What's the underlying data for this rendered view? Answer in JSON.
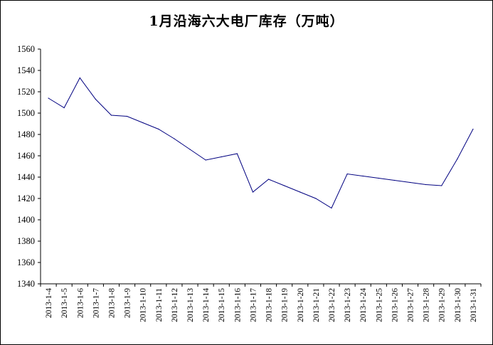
{
  "chart_data": {
    "type": "line",
    "title": "1月沿海六大电厂库存（万吨）",
    "xlabel": "",
    "ylabel": "",
    "ylim": [
      1340,
      1560
    ],
    "yticks": [
      1340,
      1360,
      1380,
      1400,
      1420,
      1440,
      1460,
      1480,
      1500,
      1520,
      1540,
      1560
    ],
    "grid": false,
    "legend": "none",
    "line_color": "#000080",
    "categories": [
      "2013-1-4",
      "2013-1-5",
      "2013-1-6",
      "2013-1-7",
      "2013-1-8",
      "2013-1-9",
      "2013-1-10",
      "2013-1-11",
      "2013-1-12",
      "2013-1-13",
      "2013-1-14",
      "2013-1-15",
      "2013-1-16",
      "2013-1-17",
      "2013-1-18",
      "2013-1-19",
      "2013-1-20",
      "2013-1-21",
      "2013-1-22",
      "2013-1-23",
      "2013-1-24",
      "2013-1-25",
      "2013-1-26",
      "2013-1-27",
      "2013-1-28",
      "2013-1-29",
      "2013-1-30",
      "2013-1-31"
    ],
    "values": [
      1514,
      1505,
      1533,
      1513,
      1498,
      1497,
      1491,
      1485,
      1476,
      1466,
      1456,
      1459,
      1462,
      1426,
      1438,
      1432,
      1426,
      1420,
      1411,
      1443,
      1441,
      1439,
      1437,
      1435,
      1433,
      1432,
      1457,
      1485
    ]
  }
}
